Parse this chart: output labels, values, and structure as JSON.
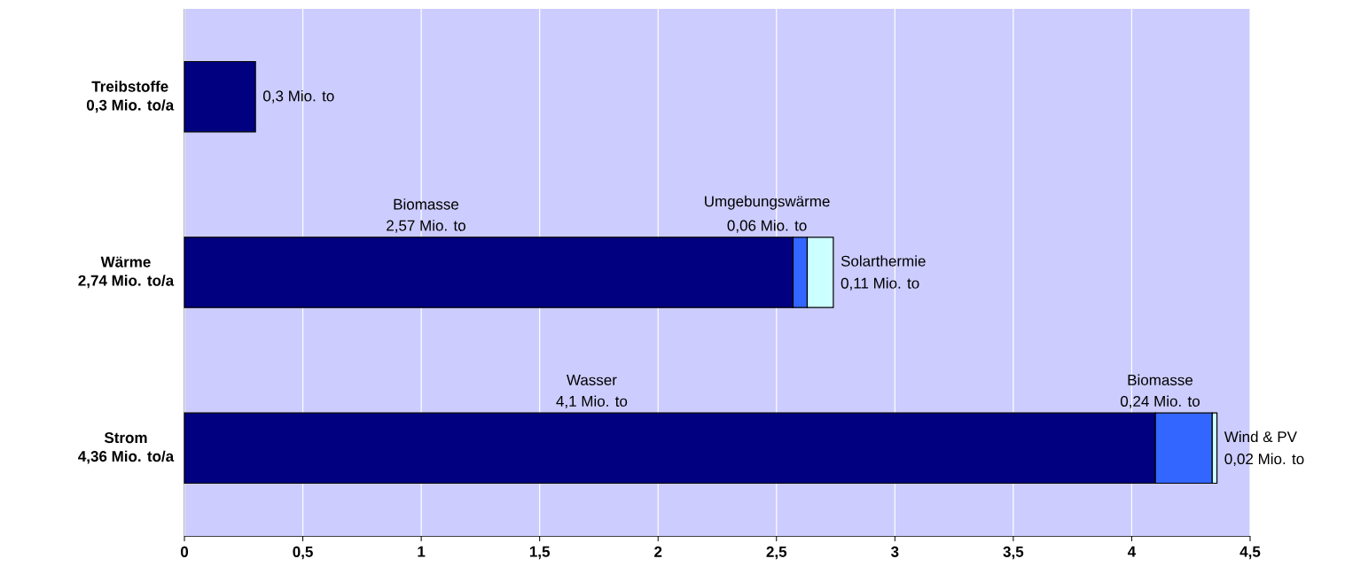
{
  "chart_data": {
    "type": "bar",
    "orientation": "horizontal",
    "stacked": true,
    "categories": [
      "Treibstoffe",
      "Wärme",
      "Strom"
    ],
    "totals": [
      "0,3 Mio. to/a",
      "2,74 Mio. to/a",
      "4,36 Mio. to/a"
    ],
    "series": [
      {
        "color": "#000080",
        "values": [
          0.3,
          2.57,
          4.1
        ]
      },
      {
        "color": "#3366ff",
        "values": [
          null,
          0.06,
          0.24
        ]
      },
      {
        "color": "#ccffff",
        "values": [
          null,
          0.11,
          0.02
        ]
      }
    ],
    "xlim": [
      0,
      4.5
    ],
    "xticks": [
      {
        "value": 0,
        "label": "0"
      },
      {
        "value": 0.5,
        "label": "0,5"
      },
      {
        "value": 1,
        "label": "1"
      },
      {
        "value": 1.5,
        "label": "1,5"
      },
      {
        "value": 2,
        "label": "2"
      },
      {
        "value": 2.5,
        "label": "2,5"
      },
      {
        "value": 3,
        "label": "3"
      },
      {
        "value": 3.5,
        "label": "3,5"
      },
      {
        "value": 4,
        "label": "4"
      },
      {
        "value": 4.5,
        "label": "4,5"
      }
    ],
    "grid": "x",
    "legend": false,
    "annotations": [
      {
        "text": "0,3 Mio. to",
        "x": 0.3,
        "y": "Treibstoffe"
      },
      "Biomasse",
      "2,57 Mio. to",
      "Umgebungswärme",
      "0,06 Mio. to",
      {
        "text": "Solarthermie",
        "x": 2.74,
        "y": "Wärme"
      },
      {
        "text": "0,11 Mio. to",
        "x": 2.74,
        "y": "Wärme"
      },
      "Wasser",
      "4,1 Mio. to",
      "Biomasse",
      "0,24 Mio. to",
      {
        "text": "Wind & PV",
        "x": 4.36,
        "y": "Strom"
      },
      {
        "text": "0,02 Mio. to",
        "x": 4.36,
        "y": "Strom"
      }
    ]
  }
}
